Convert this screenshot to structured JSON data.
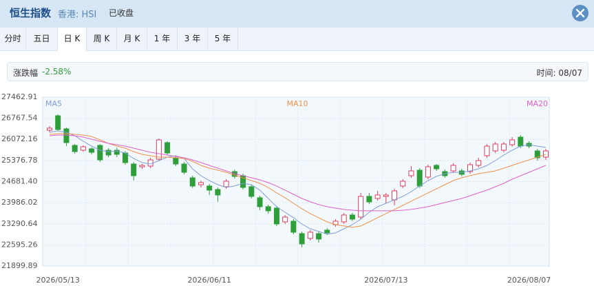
{
  "header": {
    "title": "恒生指数",
    "market": "香港: HSI",
    "status": "已收盘"
  },
  "tabs": [
    "分时",
    "五日",
    "日 K",
    "周 K",
    "月 K",
    "1 年",
    "3 年",
    "5 年"
  ],
  "active_tab": 2,
  "info": {
    "label": "涨跌幅",
    "change": "-2.58%",
    "time": "时间: 08/07"
  },
  "chart_data": {
    "type": "candlestick",
    "categories": [
      null,
      "2026/05/13",
      null,
      null,
      null,
      null,
      null,
      null,
      null,
      null,
      null,
      null,
      null,
      null,
      null,
      null,
      null,
      null,
      null,
      "2026/06/11",
      null,
      null,
      null,
      null,
      null,
      null,
      null,
      null,
      null,
      null,
      null,
      null,
      null,
      null,
      null,
      null,
      null,
      null,
      null,
      null,
      "2026/07/13",
      null,
      null,
      null,
      null,
      null,
      null,
      null,
      null,
      null,
      null,
      null,
      null,
      null,
      null,
      null,
      null,
      "2026/08/07",
      null,
      null
    ],
    "open": [
      26373,
      26850,
      26419,
      25874,
      25715,
      25761,
      25874,
      25715,
      25715,
      25624,
      25261,
      25170,
      25193,
      25420,
      25965,
      25465,
      25261,
      24807,
      24580,
      24535,
      24421,
      24512,
      25011,
      24875,
      24512,
      24149,
      23854,
      23808,
      23354,
      23377,
      22968,
      22810,
      22968,
      23082,
      23263,
      23354,
      23581,
      23513,
      24194,
      24126,
      24194,
      24081,
      24535,
      24875,
      25057,
      24830,
      25216,
      25011,
      25034,
      25034,
      25011,
      25216,
      25534,
      25692,
      25715,
      25897,
      26146,
      25942,
      25692,
      25488
    ],
    "high": [
      26510,
      26896,
      26464,
      25919,
      25874,
      25806,
      25919,
      25783,
      25806,
      25692,
      25329,
      25261,
      25465,
      26101,
      26010,
      25534,
      25329,
      24875,
      24716,
      24603,
      24489,
      24762,
      25080,
      24943,
      24580,
      24217,
      23922,
      23876,
      23581,
      23445,
      23037,
      23082,
      23037,
      23150,
      23445,
      23649,
      23649,
      24308,
      24308,
      24376,
      24308,
      24444,
      24762,
      25193,
      25125,
      25238,
      25261,
      25080,
      25284,
      25102,
      25307,
      25465,
      25919,
      25988,
      25988,
      26146,
      26215,
      26010,
      25761,
      25761
    ],
    "low": [
      26305,
      26351,
      25851,
      25602,
      25670,
      25579,
      25329,
      25488,
      25488,
      25238,
      24716,
      25102,
      25125,
      25352,
      25556,
      25193,
      24921,
      24467,
      24489,
      24240,
      24013,
      24444,
      24784,
      24421,
      24126,
      23740,
      23627,
      23218,
      23286,
      22946,
      22514,
      22741,
      22673,
      22923,
      23195,
      23286,
      23377,
      23445,
      23945,
      24058,
      23967,
      23899,
      24467,
      24807,
      24467,
      24762,
      25034,
      24807,
      24966,
      24853,
      24943,
      25148,
      25465,
      25624,
      25647,
      25829,
      25783,
      25783,
      25375,
      25397
    ],
    "close": [
      26442,
      26396,
      25965,
      25670,
      25829,
      25647,
      25397,
      25556,
      25579,
      25307,
      24875,
      25216,
      25397,
      26056,
      25624,
      25261,
      24989,
      24535,
      24648,
      24399,
      24240,
      24694,
      24853,
      24489,
      24194,
      23854,
      23718,
      23286,
      23513,
      23014,
      22628,
      23014,
      22787,
      22991,
      23377,
      23581,
      23445,
      24194,
      24013,
      24240,
      24240,
      24376,
      24694,
      25034,
      24535,
      25170,
      25102,
      24875,
      25216,
      24921,
      25238,
      25375,
      25851,
      25919,
      25919,
      26056,
      25851,
      25851,
      25465,
      25692
    ],
    "up_color": "#d8405f",
    "down_color": "#2e9e3a",
    "series": [
      {
        "name": "MA5",
        "color": "#7e9fd6",
        "values": [
          26305,
          26351,
          26305,
          26192,
          26010,
          25851,
          25715,
          25670,
          25692,
          25624,
          25443,
          25307,
          25261,
          25375,
          25488,
          25534,
          25443,
          25102,
          24875,
          24716,
          24580,
          24489,
          24535,
          24625,
          24580,
          24399,
          24126,
          23854,
          23672,
          23491,
          23286,
          23127,
          23037,
          22946,
          22991,
          23127,
          23263,
          23445,
          23672,
          23854,
          23967,
          24081,
          24194,
          24353,
          24535,
          24716,
          24853,
          24943,
          24989,
          24989,
          25034,
          25102,
          25216,
          25375,
          25556,
          25715,
          25851,
          25897,
          25851,
          25806
        ]
      },
      {
        "name": "MA10",
        "color": "#f0914a",
        "values": [
          26237,
          26260,
          26260,
          26237,
          26214,
          26169,
          26056,
          25942,
          25851,
          25783,
          25670,
          25579,
          25534,
          25488,
          25488,
          25465,
          25443,
          25352,
          25216,
          25125,
          25057,
          24989,
          24898,
          24807,
          24716,
          24625,
          24489,
          24308,
          24149,
          23967,
          23786,
          23627,
          23491,
          23354,
          23263,
          23218,
          23173,
          23218,
          23354,
          23491,
          23627,
          23763,
          23899,
          24036,
          24172,
          24308,
          24444,
          24580,
          24716,
          24807,
          24875,
          24943,
          24989,
          25034,
          25125,
          25216,
          25307,
          25397,
          25488,
          25579
        ]
      },
      {
        "name": "MA20",
        "color": "#e060c8",
        "values": [
          26192,
          26214,
          26214,
          26192,
          26146,
          26078,
          26010,
          25942,
          25897,
          25851,
          25783,
          25715,
          25647,
          25602,
          25556,
          25511,
          25465,
          25397,
          25307,
          25216,
          25125,
          25034,
          24943,
          24875,
          24807,
          24739,
          24648,
          24535,
          24399,
          24262,
          24126,
          24013,
          23922,
          23854,
          23808,
          23763,
          23740,
          23718,
          23718,
          23718,
          23718,
          23718,
          23740,
          23763,
          23808,
          23854,
          23922,
          23990,
          24058,
          24126,
          24217,
          24308,
          24399,
          24512,
          24625,
          24762,
          24875,
          24989,
          25102,
          25216
        ]
      }
    ],
    "ylim": [
      21899.89,
      27462.91
    ],
    "yticks": [
      21899.89,
      22595.26,
      23290.64,
      23986.02,
      {
        "value": 24681.4,
        "label": "24681.40"
      },
      25376.78,
      26072.16,
      26767.54,
      27462.91
    ],
    "grid": true
  }
}
